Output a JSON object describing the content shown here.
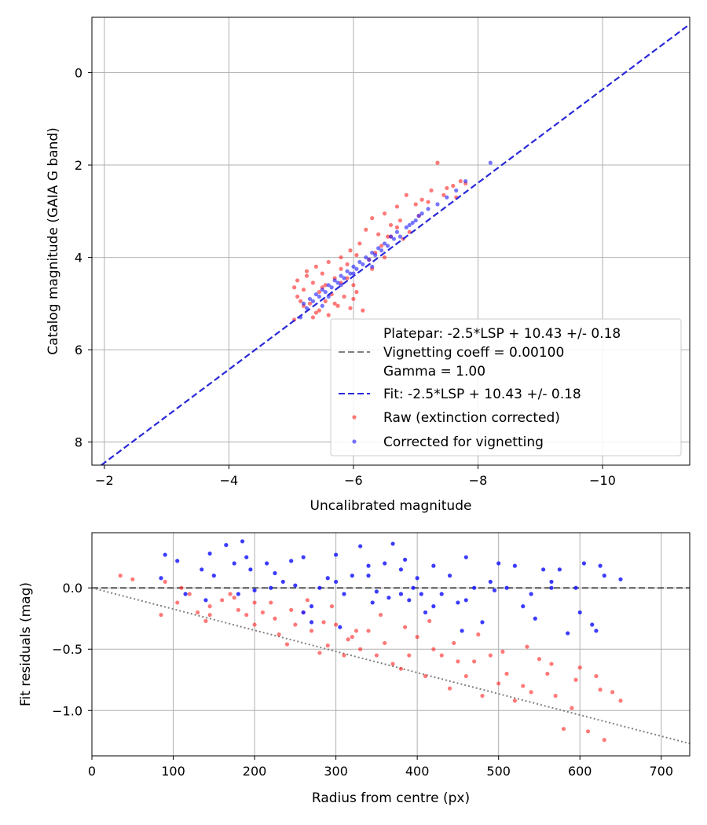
{
  "chart_data": [
    {
      "type": "scatter",
      "xlabel": "Uncalibrated magnitude",
      "ylabel": "Catalog magnitude (GAIA G band)",
      "xlim": [
        -1.8,
        -11.4
      ],
      "ylim": [
        8.5,
        -1.2
      ],
      "xticks": [
        -2,
        -4,
        -6,
        -8,
        -10
      ],
      "xtick_labels": [
        "−2",
        "−4",
        "−6",
        "−8",
        "−10"
      ],
      "yticks": [
        0,
        2,
        4,
        6,
        8
      ],
      "ytick_labels": [
        "0",
        "2",
        "4",
        "6",
        "8"
      ],
      "grid": true,
      "legend_placement": "lower-right",
      "legend": [
        {
          "kind": "text",
          "label": "Platepar: -2.5*LSP + 10.43 +/- 0.18"
        },
        {
          "kind": "gray-dash",
          "label": "Vignetting coeff = 0.00100"
        },
        {
          "kind": "text",
          "label": "Gamma = 1.00"
        },
        {
          "kind": "blue-dash",
          "label": "Fit: -2.5*LSP + 10.43 +/- 0.18"
        },
        {
          "kind": "red-dot",
          "label": "Raw (extinction corrected)"
        },
        {
          "kind": "blue-dot",
          "label": "Corrected for vignetting"
        }
      ],
      "fit_line": {
        "x": [
          -1.95,
          -11.4
        ],
        "y": [
          8.5,
          -1.05
        ],
        "color": "#2828d8"
      },
      "series": [
        {
          "name": "Raw (extinction corrected)",
          "color": "#ff2020",
          "x": [
            -7.35,
            -7.72,
            -7.6,
            -7.45,
            -7.25,
            -6.85,
            -7.1,
            -7.0,
            -6.7,
            -6.5,
            -6.75,
            -6.3,
            -6.6,
            -6.9,
            -6.4,
            -6.2,
            -6.55,
            -6.1,
            -6.45,
            -6.8,
            -5.95,
            -6.05,
            -6.25,
            -5.8,
            -5.6,
            -5.9,
            -5.4,
            -5.25,
            -5.5,
            -5.7,
            -5.1,
            -5.35,
            -5.55,
            -5.05,
            -5.2,
            -5.45,
            -5.65,
            -5.85,
            -6.0,
            -5.15,
            -5.3,
            -5.75,
            -5.95,
            -6.15,
            -5.4,
            -5.6,
            -5.8,
            -5.25,
            -5.5,
            -5.1,
            -6.3,
            -6.5,
            -6.05,
            -5.35,
            -5.7,
            -6.7,
            -7.2,
            -7.5,
            -7.8,
            -7.65,
            -5.55,
            -5.9,
            -6.35,
            -5.05,
            -5.45,
            -6.0,
            -5.2,
            -5.8,
            -6.6,
            -7.05
          ],
          "y": [
            1.95,
            2.35,
            2.45,
            2.65,
            2.55,
            2.65,
            2.75,
            2.85,
            2.9,
            3.05,
            3.2,
            3.15,
            3.3,
            3.45,
            3.5,
            3.4,
            3.55,
            3.7,
            3.75,
            3.6,
            3.85,
            3.95,
            4.05,
            4.0,
            4.1,
            4.15,
            4.2,
            4.3,
            4.35,
            4.45,
            4.5,
            4.55,
            4.6,
            4.65,
            4.7,
            4.75,
            4.8,
            4.85,
            4.9,
            4.95,
            5.0,
            5.05,
            5.1,
            5.15,
            5.2,
            5.25,
            4.55,
            4.4,
            4.65,
            4.85,
            4.25,
            4.0,
            4.75,
            5.3,
            5.0,
            3.35,
            2.8,
            2.5,
            2.4,
            2.7,
            4.95,
            4.45,
            3.9,
            5.35,
            5.15,
            4.6,
            5.05,
            4.25,
            3.55,
            3.1
          ]
        },
        {
          "name": "Corrected for vignetting",
          "color": "#1a1aff",
          "x": [
            -8.2,
            -7.8,
            -7.65,
            -7.5,
            -7.35,
            -7.2,
            -7.05,
            -6.95,
            -6.85,
            -6.7,
            -6.6,
            -6.5,
            -6.4,
            -6.3,
            -6.2,
            -6.1,
            -6.0,
            -5.9,
            -5.8,
            -5.7,
            -5.6,
            -5.5,
            -5.4,
            -5.3,
            -5.2,
            -7.1,
            -6.9,
            -6.75,
            -6.55,
            -6.35,
            -6.15,
            -5.95,
            -5.75,
            -5.55,
            -5.35,
            -5.25,
            -6.45,
            -6.05,
            -5.85,
            -5.65,
            -5.45,
            -6.25,
            -6.65,
            -7.0,
            -5.15,
            -5.5,
            -5.8,
            -6.0,
            -6.3,
            -5.6
          ],
          "y": [
            1.95,
            2.35,
            2.55,
            2.7,
            2.85,
            2.95,
            3.1,
            3.25,
            3.35,
            3.45,
            3.55,
            3.7,
            3.8,
            3.9,
            4.0,
            4.1,
            4.2,
            4.3,
            4.4,
            4.5,
            4.6,
            4.7,
            4.8,
            4.9,
            5.0,
            3.05,
            3.3,
            3.55,
            3.75,
            3.95,
            4.15,
            4.35,
            4.55,
            4.75,
            4.95,
            5.1,
            3.85,
            4.25,
            4.45,
            4.65,
            4.85,
            4.05,
            3.6,
            3.2,
            5.3,
            5.05,
            4.6,
            4.35,
            4.2,
            4.85
          ]
        }
      ]
    },
    {
      "type": "scatter",
      "xlabel": "Radius from centre (px)",
      "ylabel": "Fit residuals (mag)",
      "xlim": [
        0,
        735
      ],
      "ylim": [
        -1.37,
        0.45
      ],
      "xticks": [
        0,
        100,
        200,
        300,
        400,
        500,
        600,
        700
      ],
      "xtick_labels": [
        "0",
        "100",
        "200",
        "300",
        "400",
        "500",
        "600",
        "700"
      ],
      "yticks": [
        0.0,
        -0.5,
        -1.0
      ],
      "ytick_labels": [
        "0.0",
        "−0.5",
        "−1.0"
      ],
      "grid": true,
      "zero_line": {
        "y": 0,
        "color": "#555555"
      },
      "trend_line": {
        "x": [
          0,
          735
        ],
        "y": [
          0,
          -1.27
        ],
        "color": "#808080"
      },
      "series": [
        {
          "name": "Raw",
          "color": "#ff2020",
          "x": [
            35,
            50,
            85,
            90,
            105,
            110,
            130,
            140,
            145,
            160,
            170,
            180,
            190,
            200,
            210,
            220,
            230,
            240,
            250,
            260,
            270,
            280,
            290,
            300,
            310,
            320,
            330,
            340,
            350,
            360,
            370,
            380,
            390,
            400,
            410,
            420,
            430,
            440,
            450,
            460,
            470,
            480,
            490,
            500,
            510,
            520,
            530,
            540,
            550,
            560,
            570,
            580,
            590,
            600,
            610,
            620,
            630,
            640,
            650,
            145,
            175,
            225,
            265,
            295,
            325,
            355,
            385,
            415,
            445,
            475,
            505,
            535,
            565,
            595,
            625,
            120,
            200,
            245,
            285,
            315
          ],
          "y": [
            0.1,
            0.07,
            -0.22,
            0.05,
            -0.12,
            0.0,
            -0.2,
            -0.27,
            -0.15,
            -0.1,
            -0.05,
            -0.18,
            -0.22,
            -0.3,
            -0.2,
            -0.12,
            -0.38,
            -0.46,
            -0.3,
            -0.2,
            -0.35,
            -0.53,
            -0.47,
            -0.3,
            -0.55,
            -0.4,
            -0.5,
            -0.35,
            -0.55,
            -0.45,
            -0.62,
            -0.66,
            -0.55,
            -0.4,
            -0.72,
            -0.5,
            -0.55,
            -0.82,
            -0.6,
            -0.72,
            -0.6,
            -0.88,
            -0.55,
            -0.78,
            -0.7,
            -0.92,
            -0.8,
            -0.85,
            -0.58,
            -0.7,
            -0.88,
            -1.15,
            -0.98,
            -0.65,
            -1.17,
            -0.72,
            -1.24,
            -0.85,
            -0.92,
            -0.22,
            -0.08,
            -0.25,
            -0.1,
            -0.15,
            -0.35,
            -0.22,
            -0.32,
            -0.27,
            -0.45,
            -0.38,
            -0.52,
            -0.48,
            -0.62,
            -0.75,
            -0.83,
            -0.05,
            -0.12,
            -0.18,
            -0.28,
            -0.42
          ]
        },
        {
          "name": "Corrected",
          "color": "#1a1aff",
          "x": [
            85,
            90,
            105,
            115,
            135,
            145,
            150,
            165,
            175,
            185,
            190,
            195,
            200,
            215,
            225,
            235,
            245,
            250,
            260,
            270,
            280,
            290,
            300,
            310,
            320,
            330,
            340,
            350,
            360,
            370,
            380,
            385,
            390,
            395,
            400,
            410,
            420,
            430,
            440,
            450,
            460,
            470,
            480,
            490,
            500,
            510,
            520,
            530,
            540,
            545,
            555,
            565,
            575,
            585,
            595,
            605,
            615,
            625,
            630,
            650,
            270,
            305,
            345,
            365,
            405,
            455,
            495,
            565,
            600,
            620,
            140,
            180,
            220,
            260,
            300,
            340,
            380,
            420,
            460
          ],
          "y": [
            0.08,
            0.27,
            0.22,
            -0.05,
            0.15,
            0.28,
            0.1,
            0.35,
            0.2,
            0.38,
            0.25,
            0.15,
            -0.02,
            0.2,
            0.12,
            0.05,
            0.22,
            0.02,
            0.25,
            -0.15,
            0.0,
            0.08,
            0.27,
            -0.05,
            0.1,
            0.34,
            0.18,
            -0.03,
            0.2,
            0.36,
            0.15,
            0.23,
            -0.1,
            0.0,
            0.08,
            -0.2,
            0.18,
            -0.05,
            0.1,
            -0.12,
            0.25,
            0.0,
            -0.28,
            0.05,
            0.2,
            0.0,
            0.18,
            -0.15,
            -0.05,
            -0.25,
            0.15,
            0.05,
            0.15,
            -0.37,
            0.0,
            0.2,
            -0.3,
            0.18,
            0.1,
            0.07,
            -0.28,
            -0.32,
            -0.12,
            -0.08,
            -0.05,
            -0.35,
            -0.02,
            0.0,
            -0.2,
            -0.35,
            -0.1,
            -0.05,
            0.0,
            -0.2,
            0.05,
            0.1,
            -0.05,
            -0.15,
            -0.1
          ]
        }
      ]
    }
  ]
}
